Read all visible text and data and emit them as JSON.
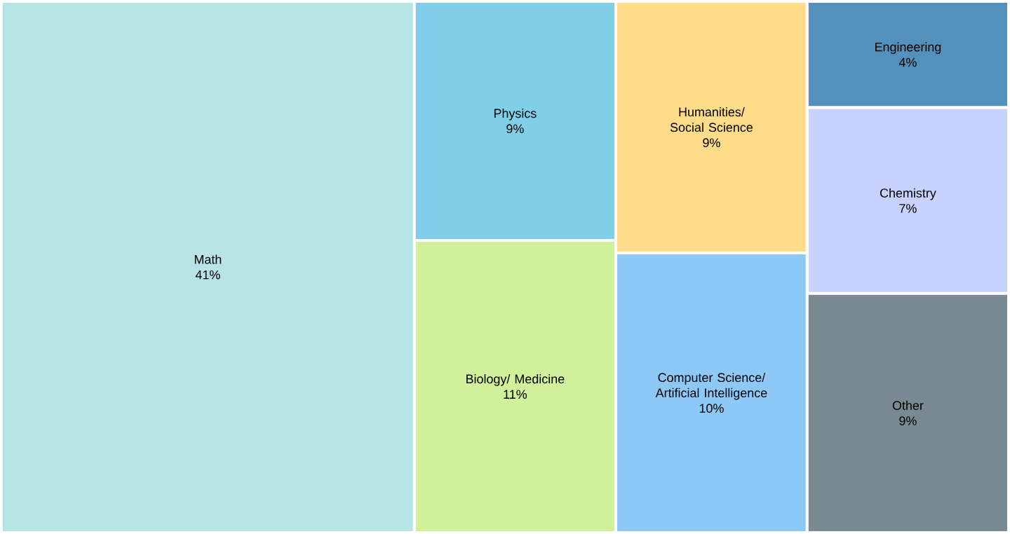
{
  "chart_data": {
    "type": "other",
    "categories": [
      "Math",
      "Physics",
      "Biology/ Medicine",
      "Humanities/ Social Science",
      "Computer Science/ Artificial Intelligence",
      "Engineering",
      "Chemistry",
      "Other"
    ],
    "values": [
      41,
      9,
      11,
      9,
      10,
      4,
      7,
      9
    ],
    "value_labels": [
      "41%",
      "9%",
      "11%",
      "9%",
      "10%",
      "4%",
      "7%",
      "9%"
    ],
    "colors": [
      "#b8e4e6",
      "#7fcfe8",
      "#d1f09a",
      "#fedc8a",
      "#8ec8f7",
      "#5490bc",
      "#c8d2ff",
      "#7a8a93"
    ]
  }
}
